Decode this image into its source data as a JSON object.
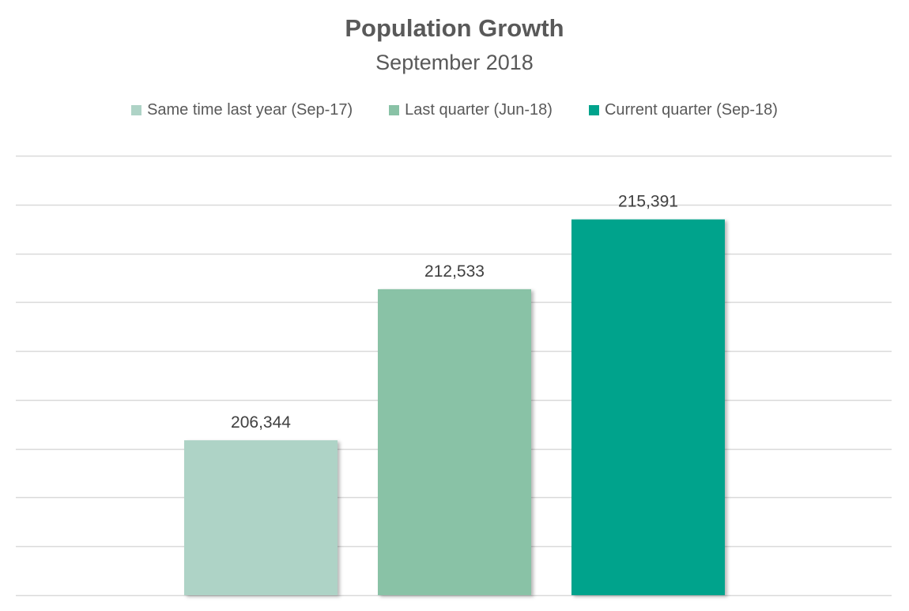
{
  "chart_data": {
    "type": "bar",
    "title": "Population Growth",
    "subtitle": "September 2018",
    "categories": [
      "Same time last year (Sep-17)",
      "Last quarter (Jun-18)",
      "Current quarter (Sep-18)"
    ],
    "values": [
      206344,
      212533,
      215391
    ],
    "value_labels": [
      "206,344",
      "212,533",
      "215,391"
    ],
    "colors": [
      "#aed3c6",
      "#89c2a6",
      "#00a38c"
    ],
    "ylim": [
      200000,
      218000
    ],
    "y_gridline_step": 2000,
    "grid": true,
    "legend_position": "top",
    "show_axis_labels": false
  }
}
